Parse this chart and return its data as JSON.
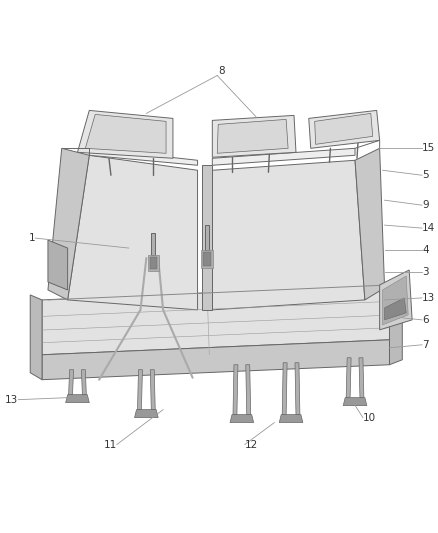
{
  "background_color": "#ffffff",
  "line_color": "#666666",
  "outline_color": "#555555",
  "text_color": "#333333",
  "callout_line_color": "#999999",
  "fig_width": 4.38,
  "fig_height": 5.33,
  "dpi": 100,
  "seat_face_color": "#e2e2e2",
  "seat_dark_color": "#c8c8c8",
  "seat_light_color": "#eeeeee",
  "headrest_color": "#e5e5e5",
  "metal_color": "#b0b0b0"
}
